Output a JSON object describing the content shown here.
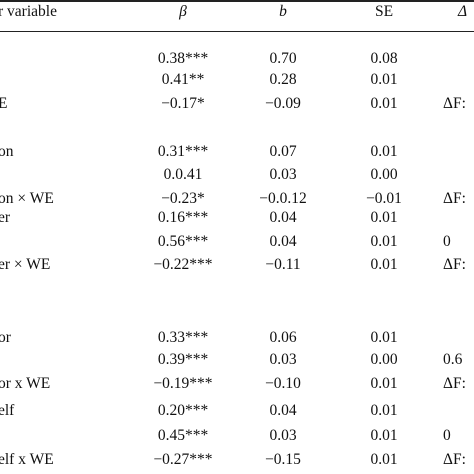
{
  "header": {
    "col0": "r variable",
    "col1": "β",
    "col2": "b",
    "col3": "SE",
    "col4": "Δ"
  },
  "rows": [
    {
      "label": "",
      "beta": "0.38***",
      "b": "0.70",
      "se": "0.08",
      "extra": ""
    },
    {
      "label": "",
      "beta": "0.41**",
      "b": "0.28",
      "se": "0.01",
      "extra": ""
    },
    {
      "label": "E",
      "beta": "−0.17*",
      "b": "−0.09",
      "se": "0.01",
      "extra": "ΔF:"
    },
    {
      "label": "on",
      "beta": "0.31***",
      "b": "0.07",
      "se": "0.01",
      "extra": ""
    },
    {
      "label": "",
      "beta": "0.0.41",
      "b": "0.03",
      "se": "0.00",
      "extra": ""
    },
    {
      "label": "on × WE",
      "beta": "−0.23*",
      "b": "−0.0.12",
      "se": "−0.01",
      "extra": "ΔF:"
    },
    {
      "label": "er",
      "beta": "0.16***",
      "b": "0.04",
      "se": "0.01",
      "extra": ""
    },
    {
      "label": "",
      "beta": "0.56***",
      "b": "0.04",
      "se": "0.01",
      "extra": "0"
    },
    {
      "label": "er × WE",
      "beta": "−0.22***",
      "b": "−0.11",
      "se": "0.01",
      "extra": "ΔF:"
    },
    {
      "label": "or",
      "beta": "0.33***",
      "b": "0.06",
      "se": "0.01",
      "extra": ""
    },
    {
      "label": "",
      "beta": "0.39***",
      "b": "0.03",
      "se": "0.00",
      "extra": "0.6"
    },
    {
      "label": "or x WE",
      "beta": "−0.19***",
      "b": "−0.10",
      "se": "0.01",
      "extra": "ΔF:"
    },
    {
      "label": "elf",
      "beta": "0.20***",
      "b": "0.04",
      "se": "0.01",
      "extra": ""
    },
    {
      "label": "",
      "beta": "0.45***",
      "b": "0.03",
      "se": "0.01",
      "extra": "0"
    },
    {
      "label": "elf x WE",
      "beta": "−0.27***",
      "b": "−0.15",
      "se": "0.01",
      "extra": "ΔF:"
    }
  ]
}
